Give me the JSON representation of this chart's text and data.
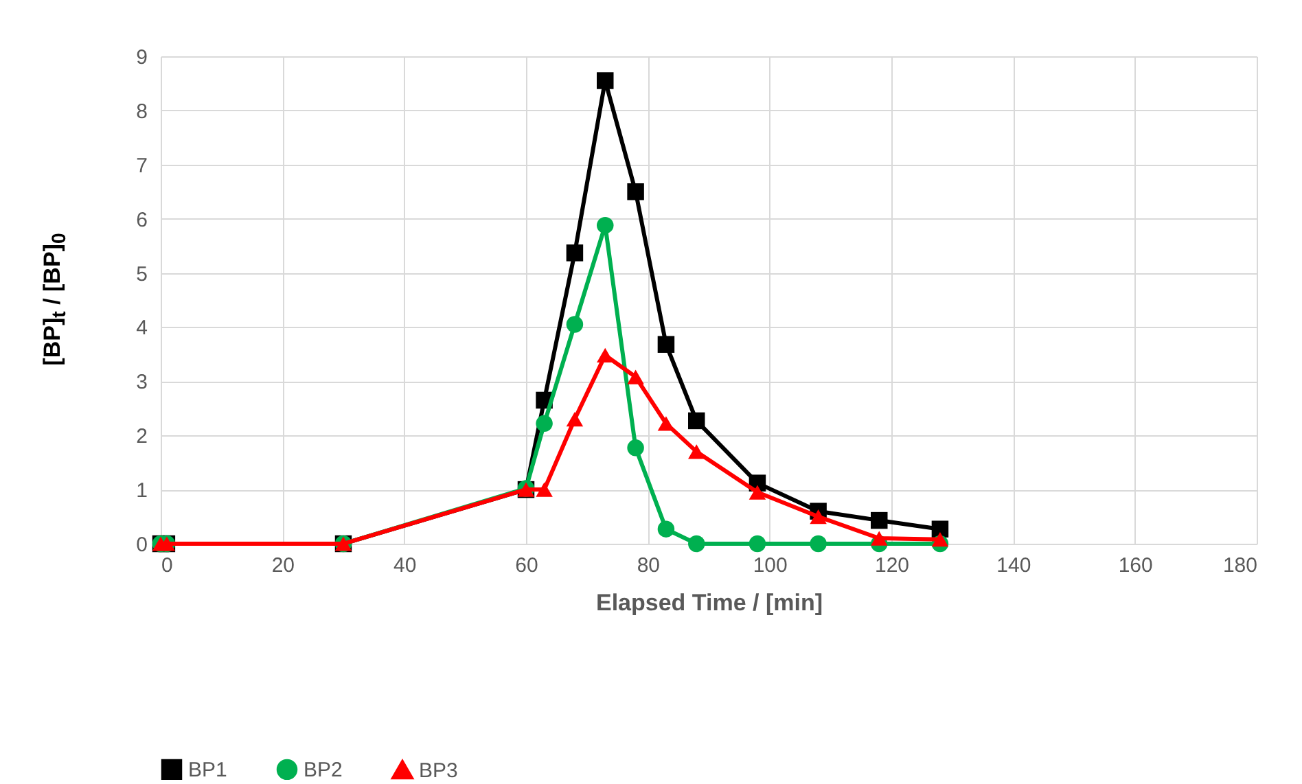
{
  "chart_data": {
    "type": "line",
    "xlabel": "Elapsed Time / [min]",
    "ylabel": "[BP]$_{t}$ / [BP]$_{0}$",
    "x": [
      0,
      1,
      30,
      60,
      63,
      68,
      73,
      78,
      83,
      88,
      98,
      108,
      118,
      128
    ],
    "xlim": [
      0,
      180
    ],
    "xticks": [
      0,
      20,
      40,
      60,
      80,
      100,
      120,
      140,
      160,
      180
    ],
    "ylim": [
      0,
      9
    ],
    "yticks": [
      0,
      1,
      2,
      3,
      4,
      5,
      6,
      7,
      8,
      9
    ],
    "grid": true,
    "legend": "bottom",
    "series": [
      {
        "name": "BP1",
        "color": "#000000",
        "marker": "square",
        "values": [
          0,
          0,
          0,
          1.0,
          2.65,
          5.37,
          8.55,
          6.5,
          3.68,
          2.27,
          1.12,
          0.6,
          0.43,
          0.27
        ]
      },
      {
        "name": "BP2",
        "color": "#00b050",
        "marker": "circle",
        "values": [
          0,
          0,
          0,
          1.02,
          2.22,
          4.05,
          5.88,
          1.77,
          0.27,
          0,
          0,
          0,
          0,
          0
        ]
      },
      {
        "name": "BP3",
        "color": "#ff0000",
        "marker": "triangle",
        "values": [
          0,
          0,
          0,
          1.0,
          1.0,
          2.3,
          3.48,
          3.08,
          2.22,
          1.7,
          0.95,
          0.5,
          0.1,
          0.08
        ]
      }
    ]
  }
}
